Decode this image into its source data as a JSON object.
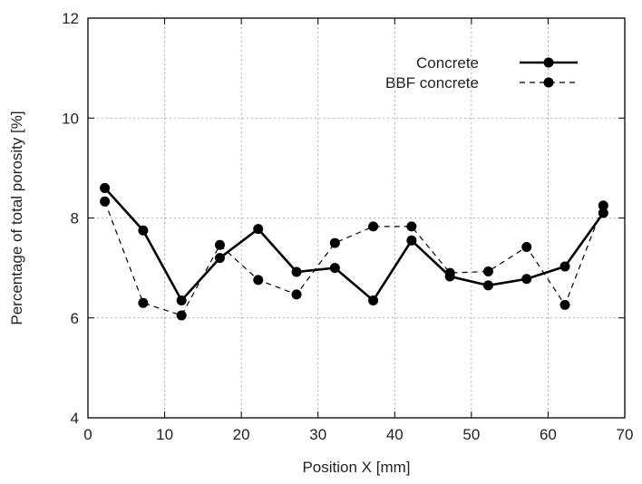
{
  "chart_data": {
    "type": "line",
    "title": "",
    "xlabel": "Position X [mm]",
    "ylabel": "Percentage of total porosity [%]",
    "xlim": [
      0,
      70
    ],
    "ylim": [
      4,
      12
    ],
    "x_ticks": [
      0,
      10,
      20,
      30,
      40,
      50,
      60,
      70
    ],
    "y_ticks": [
      4,
      6,
      8,
      10,
      12
    ],
    "grid": true,
    "legend_position": "top-right",
    "series": [
      {
        "name": "Concrete",
        "line_style": "solid",
        "marker": "filled-circle",
        "color": "#000000",
        "x": [
          2.2,
          7.2,
          12.2,
          17.2,
          22.2,
          27.2,
          32.2,
          37.2,
          42.2,
          47.2,
          52.2,
          57.2,
          62.2,
          67.2
        ],
        "y": [
          8.6,
          7.75,
          6.35,
          7.2,
          7.78,
          6.92,
          7.0,
          6.35,
          7.55,
          6.83,
          6.65,
          6.78,
          7.03,
          8.1
        ]
      },
      {
        "name": "BBF concrete",
        "line_style": "dashed",
        "marker": "filled-circle",
        "color": "#000000",
        "x": [
          2.2,
          7.2,
          12.2,
          17.2,
          22.2,
          27.2,
          32.2,
          37.2,
          42.2,
          47.2,
          52.2,
          57.2,
          62.2,
          67.2
        ],
        "y": [
          8.33,
          6.3,
          6.05,
          7.46,
          6.76,
          6.47,
          7.5,
          7.83,
          7.83,
          6.9,
          6.93,
          7.42,
          6.26,
          8.25
        ]
      }
    ]
  }
}
